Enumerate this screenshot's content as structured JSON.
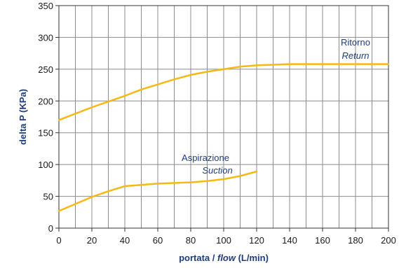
{
  "chart_data": {
    "type": "line",
    "xlabel": "portata / ",
    "xlabel_italic": "flow",
    "xlabel_suffix": " (L/min)",
    "ylabel": "delta P (KPa)",
    "xlim": [
      0,
      200
    ],
    "ylim": [
      0,
      350
    ],
    "x_ticks": [
      0,
      20,
      40,
      60,
      80,
      100,
      120,
      140,
      160,
      180,
      200
    ],
    "y_ticks": [
      0,
      50,
      100,
      150,
      200,
      250,
      300,
      350
    ],
    "x_grid_step": 10,
    "y_grid_step": 50,
    "grid": true,
    "line_color": "#f5b914",
    "series": [
      {
        "name": "Ritorno",
        "name_en": "Return",
        "x": [
          0,
          10,
          20,
          30,
          40,
          50,
          60,
          70,
          80,
          90,
          100,
          110,
          120,
          130,
          140,
          150,
          160,
          170,
          180,
          190,
          200
        ],
        "y": [
          170,
          180,
          190,
          199,
          208,
          218,
          226,
          234,
          241,
          246,
          250,
          254,
          256,
          257,
          258,
          258,
          258,
          258,
          258,
          258,
          258
        ]
      },
      {
        "name": "Aspirazione",
        "name_en": "Suction",
        "x": [
          0,
          10,
          20,
          30,
          40,
          50,
          60,
          70,
          80,
          90,
          100,
          110,
          120
        ],
        "y": [
          27,
          38,
          49,
          58,
          66,
          68,
          70,
          71,
          72,
          74,
          77,
          82,
          89
        ]
      }
    ]
  }
}
